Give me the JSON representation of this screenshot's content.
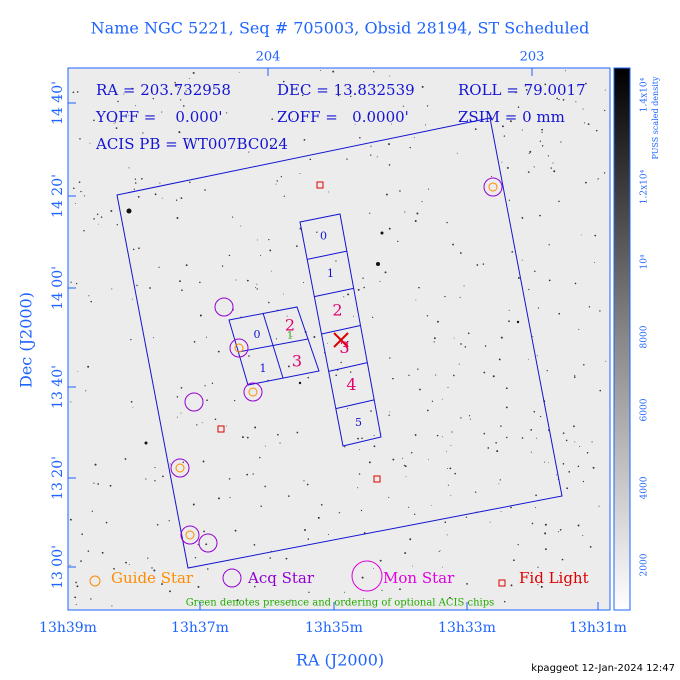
{
  "header": {
    "title": "Name NGC 5221, Seq # 705003, Obsid 28194, ST Scheduled"
  },
  "info": {
    "ra": "RA = 203.732958",
    "dec": "DEC = 13.832539",
    "roll": "ROLL = 79.0017",
    "yoff": "YOFF =    0.000'",
    "zoff": "ZOFF =   0.0000'",
    "zsim": "ZSIM = 0 mm",
    "acis_pb": "ACIS PB = WT007BC024"
  },
  "axes": {
    "x_label": "RA (J2000)",
    "y_label": "Dec (J2000)",
    "x_ticks": [
      "13h39m",
      "13h37m",
      "13h35m",
      "13h33m",
      "13h31m"
    ],
    "top_ticks": [
      "204",
      "203"
    ],
    "y_ticks": [
      "14 40'",
      "14 20'",
      "14 00'",
      "13 40'",
      "13 20'",
      "13 00'"
    ]
  },
  "colorbar": {
    "title": "PUSS scaled density",
    "ticks": [
      "2000",
      "4000",
      "6000",
      "8000",
      "10⁴",
      "1.2x10⁴",
      "1.4x10⁴"
    ]
  },
  "chips": {
    "acis_i": [
      "0",
      "2",
      "1",
      "3"
    ],
    "acis_i_optional": "1",
    "acis_s": [
      "0",
      "1",
      "2",
      "3",
      "4",
      "5"
    ]
  },
  "legend": {
    "guide": "Guide Star",
    "acq": "Acq Star",
    "mon": "Mon Star",
    "fid": "Fid Light",
    "note": "Green denotes presence and ordering of optional ACIS chips"
  },
  "footer": {
    "stamp": "kpaggeot 12-Jan-2024 12:47"
  }
}
